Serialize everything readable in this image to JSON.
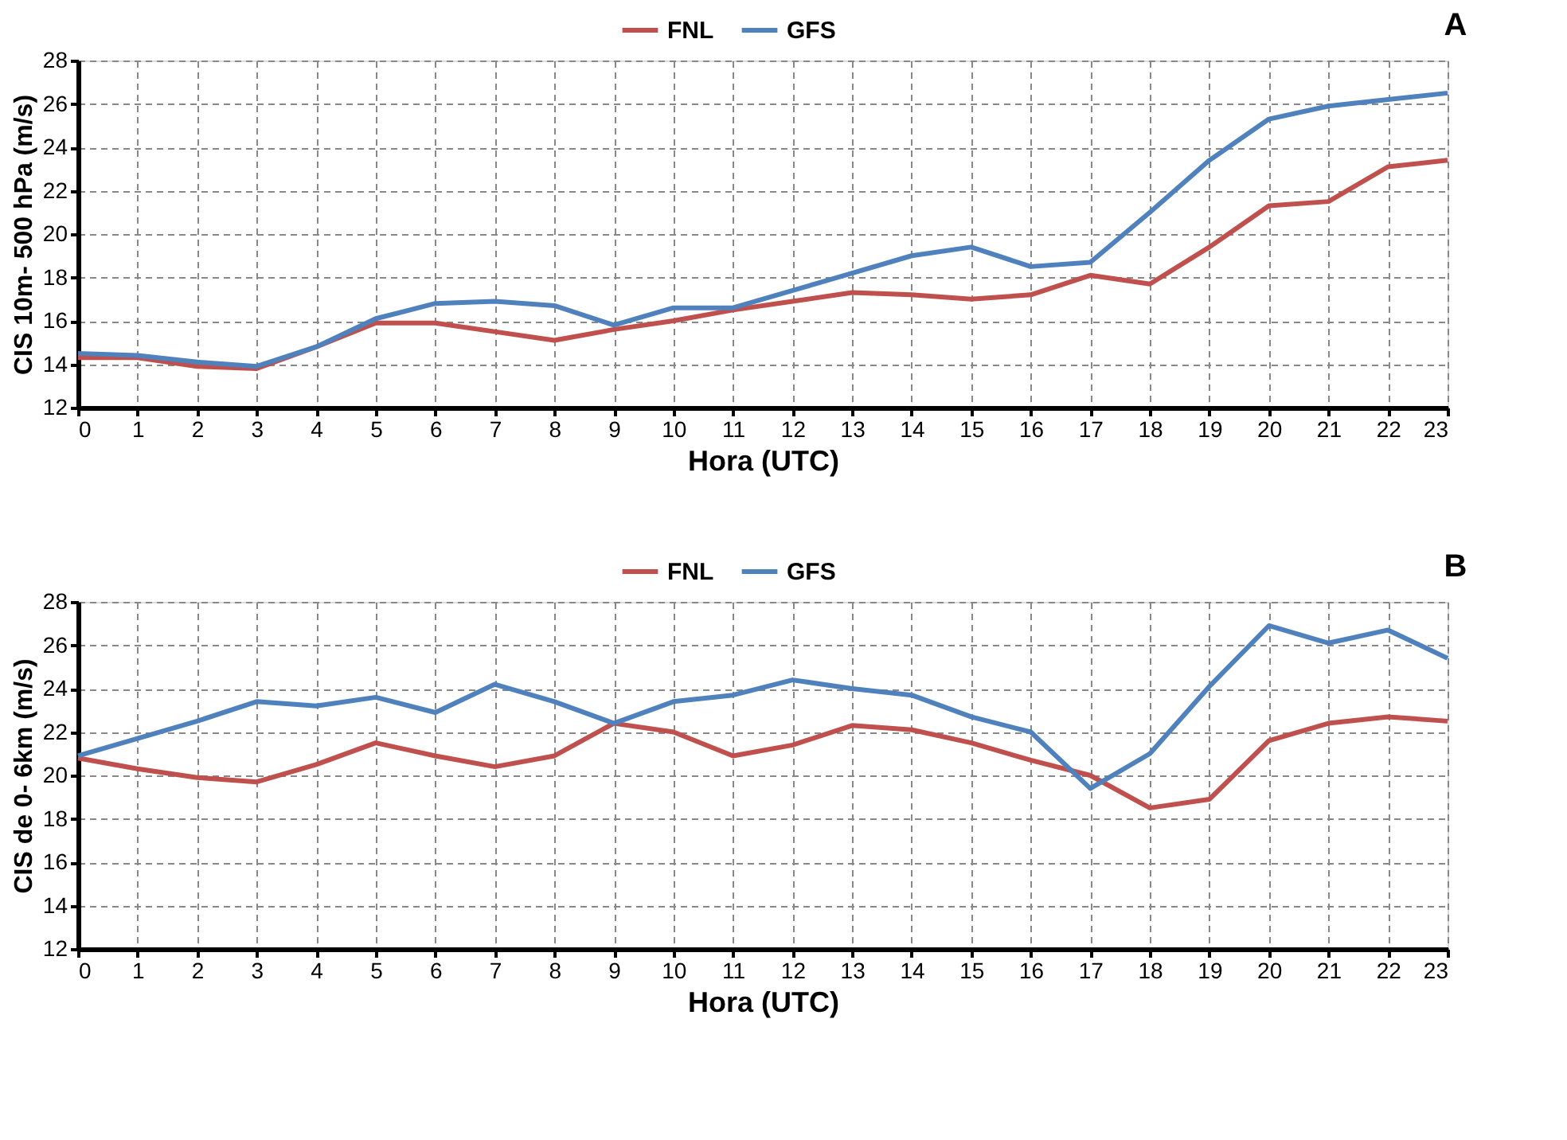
{
  "chart_data": [
    {
      "type": "line",
      "xlabel": "Hora (UTC)",
      "ylabel": "CIS 10m- 500 hPa (m/s)",
      "annotations": [
        "A"
      ],
      "x": [
        0,
        1,
        2,
        3,
        4,
        5,
        6,
        7,
        8,
        9,
        10,
        11,
        12,
        13,
        14,
        15,
        16,
        17,
        18,
        19,
        20,
        21,
        22,
        23
      ],
      "xlim": [
        0,
        23
      ],
      "xticks": [
        0,
        1,
        2,
        3,
        4,
        5,
        6,
        7,
        8,
        9,
        10,
        11,
        12,
        13,
        14,
        15,
        16,
        17,
        18,
        19,
        20,
        21,
        22,
        23
      ],
      "ylim": [
        12,
        28
      ],
      "yticks": [
        12,
        14,
        16,
        18,
        20,
        22,
        24,
        26,
        28
      ],
      "grid": true,
      "legend": "top",
      "line_style": "solid",
      "series": [
        {
          "name": "FNL",
          "color": "#c0504d",
          "values": [
            14.3,
            14.3,
            13.9,
            13.8,
            14.8,
            15.9,
            15.9,
            15.5,
            15.1,
            15.6,
            16.0,
            16.5,
            16.9,
            17.3,
            17.2,
            17.0,
            17.2,
            18.1,
            17.7,
            19.4,
            21.3,
            21.5,
            23.1,
            23.4
          ]
        },
        {
          "name": "GFS",
          "color": "#4f81bd",
          "values": [
            14.5,
            14.4,
            14.1,
            13.9,
            14.8,
            16.1,
            16.8,
            16.9,
            16.7,
            15.8,
            16.6,
            16.6,
            17.4,
            18.2,
            19.0,
            19.4,
            18.5,
            18.7,
            21.0,
            23.4,
            25.3,
            25.9,
            26.2,
            26.5
          ]
        }
      ]
    },
    {
      "type": "line",
      "xlabel": "Hora (UTC)",
      "ylabel": "CIS de 0- 6km (m/s)",
      "annotations": [
        "B"
      ],
      "x": [
        0,
        1,
        2,
        3,
        4,
        5,
        6,
        7,
        8,
        9,
        10,
        11,
        12,
        13,
        14,
        15,
        16,
        17,
        18,
        19,
        20,
        21,
        22,
        23
      ],
      "xlim": [
        0,
        23
      ],
      "xticks": [
        0,
        1,
        2,
        3,
        4,
        5,
        6,
        7,
        8,
        9,
        10,
        11,
        12,
        13,
        14,
        15,
        16,
        17,
        18,
        19,
        20,
        21,
        22,
        23
      ],
      "ylim": [
        12,
        28
      ],
      "yticks": [
        12,
        14,
        16,
        18,
        20,
        22,
        24,
        26,
        28
      ],
      "grid": true,
      "legend": "top",
      "line_style": "solid",
      "series": [
        {
          "name": "FNL",
          "color": "#c0504d",
          "values": [
            20.8,
            20.3,
            19.9,
            19.7,
            20.5,
            21.5,
            20.9,
            20.4,
            20.9,
            22.4,
            22.0,
            20.9,
            21.4,
            22.3,
            22.1,
            21.5,
            20.7,
            20.0,
            18.5,
            18.9,
            21.6,
            22.4,
            22.7,
            22.5
          ]
        },
        {
          "name": "GFS",
          "color": "#4f81bd",
          "values": [
            20.9,
            21.7,
            22.5,
            23.4,
            23.2,
            23.6,
            22.9,
            24.2,
            23.4,
            22.4,
            23.4,
            23.7,
            24.4,
            24.0,
            23.7,
            22.7,
            22.0,
            19.4,
            21.0,
            24.1,
            26.9,
            26.1,
            26.7,
            25.4
          ]
        }
      ]
    }
  ]
}
